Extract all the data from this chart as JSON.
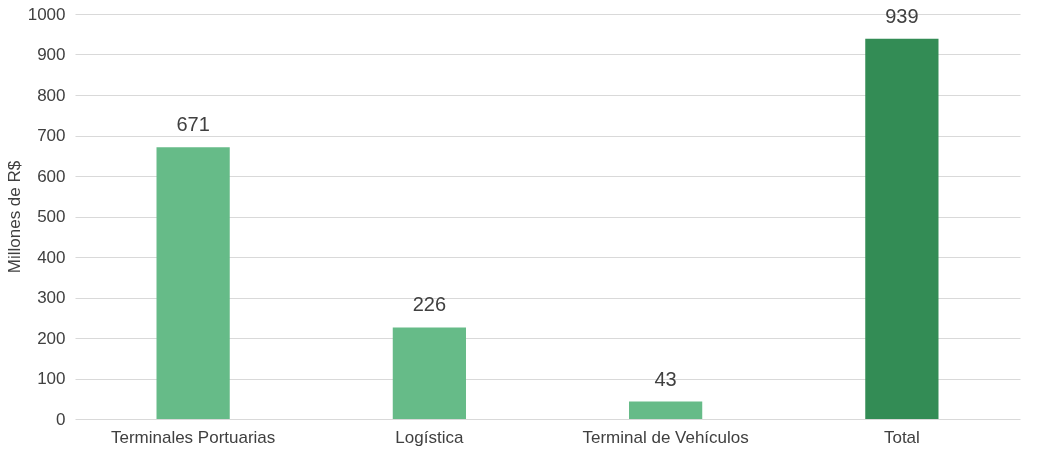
{
  "chart_data": {
    "type": "bar",
    "ylabel": "Millones de R$",
    "categories": [
      "Terminales Portuarias",
      "Logística",
      "Terminal de Vehículos",
      "Total"
    ],
    "values": [
      671,
      226,
      43,
      939
    ],
    "colors": [
      "#66bb88",
      "#66bb88",
      "#66bb88",
      "#338c55"
    ],
    "ylim": [
      0,
      1000
    ],
    "yticks": [
      0,
      100,
      200,
      300,
      400,
      500,
      600,
      700,
      800,
      900,
      1000
    ],
    "grid": "y",
    "data_labels": true
  }
}
